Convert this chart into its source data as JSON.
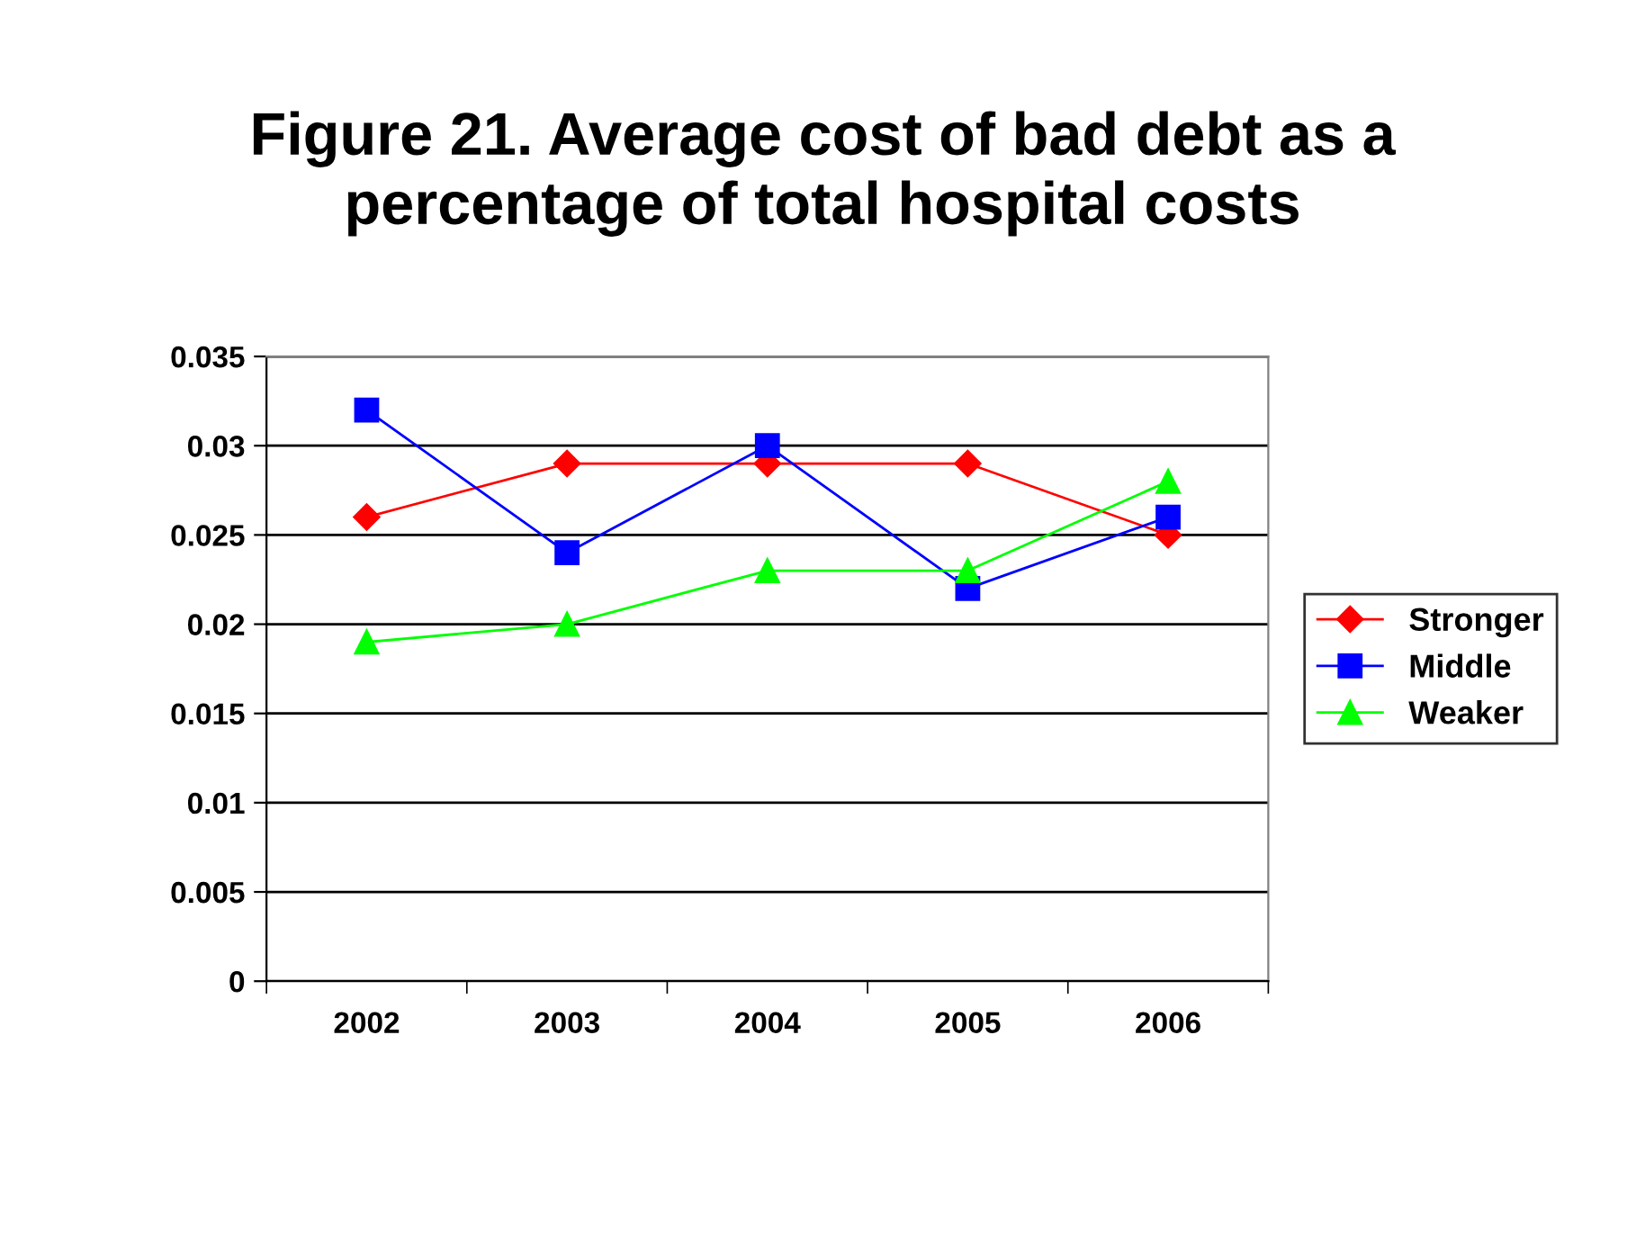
{
  "chart_data": {
    "type": "line",
    "title": "Figure 21. Average cost of bad debt as a\npercentage of total hospital costs",
    "categories": [
      "2002",
      "2003",
      "2004",
      "2005",
      "2006"
    ],
    "series": [
      {
        "name": "Stronger",
        "color": "#ff0000",
        "marker": "diamond",
        "values": [
          0.026,
          0.029,
          0.029,
          0.029,
          0.025
        ]
      },
      {
        "name": "Middle",
        "color": "#0000ff",
        "marker": "square",
        "values": [
          0.032,
          0.024,
          0.03,
          0.022,
          0.026
        ]
      },
      {
        "name": "Weaker",
        "color": "#00ff00",
        "marker": "triangle",
        "values": [
          0.019,
          0.02,
          0.023,
          0.023,
          0.028
        ]
      }
    ],
    "ylim": [
      0,
      0.035
    ],
    "yticks": [
      0,
      0.005,
      0.01,
      0.015,
      0.02,
      0.025,
      0.03,
      0.035
    ],
    "grid": "y",
    "legend": "right",
    "line_style": "solid"
  }
}
